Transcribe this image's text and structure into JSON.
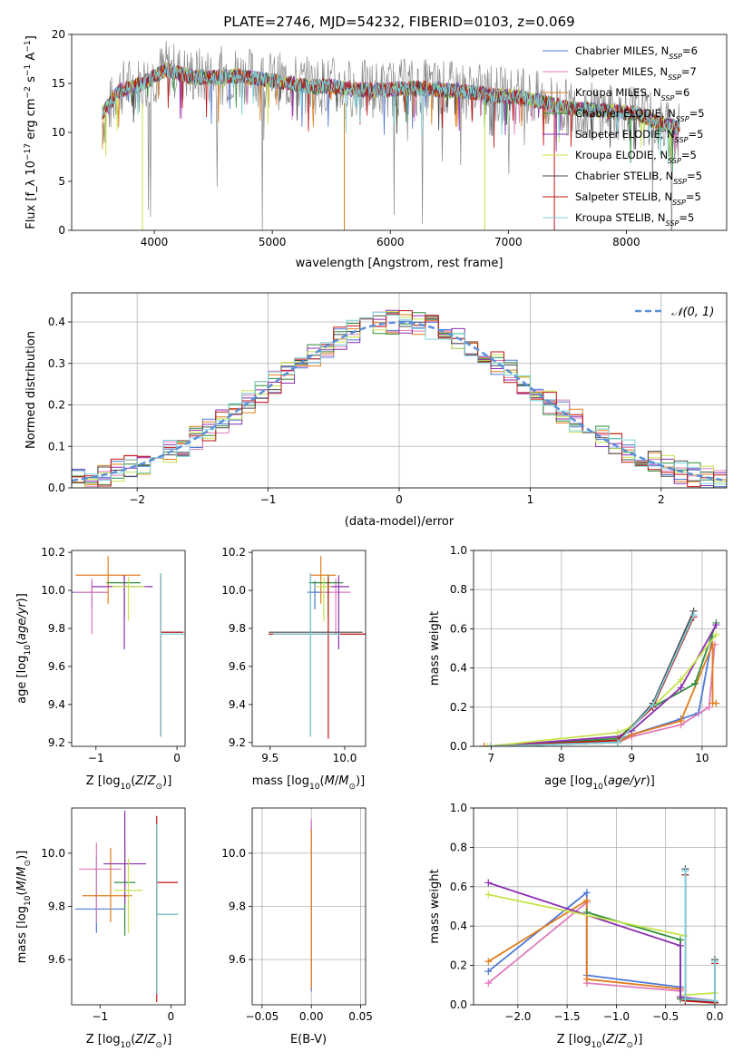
{
  "figure_title": "PLATE=2746, MJD=54232, FIBERID=0103, z=0.069",
  "series_styles": [
    {
      "name": "Chabrier MILES",
      "nssp": "6",
      "color": "#4f78d6"
    },
    {
      "name": "Salpeter MILES",
      "nssp": "7",
      "color": "#e07bbb"
    },
    {
      "name": "Kroupa MILES",
      "nssp": "6",
      "color": "#e07e1d"
    },
    {
      "name": "Chabrier ELODIE",
      "nssp": "5",
      "color": "#2f8e3a"
    },
    {
      "name": "Salpeter ELODIE",
      "nssp": "5",
      "color": "#8c2fb0"
    },
    {
      "name": "Kroupa ELODIE",
      "nssp": "5",
      "color": "#c6e44b"
    },
    {
      "name": "Chabrier STELIB",
      "nssp": "5",
      "color": "#4a4a4a"
    },
    {
      "name": "Salpeter STELIB",
      "nssp": "5",
      "color": "#c01515"
    },
    {
      "name": "Kroupa STELIB",
      "nssp": "5",
      "color": "#7ad2dc"
    }
  ],
  "chart_data": [
    {
      "id": "spectrum",
      "type": "line",
      "title": "PLATE=2746, MJD=54232, FIBERID=0103, z=0.069",
      "xlabel": "wavelength [Angstrom, rest frame]",
      "ylabel": "Flux [f_λ 10^-17 erg cm^-2 s^-1 A^-1]",
      "xlim": [
        3300,
        8850
      ],
      "ylim": [
        0,
        20
      ],
      "xticks": [
        4000,
        5000,
        6000,
        7000,
        8000
      ],
      "yticks": [
        0,
        5,
        10,
        15,
        20
      ],
      "grid": false,
      "legend_position": "top-right",
      "legend_entries": [
        "Chabrier MILES, N_SSP=6",
        "Salpeter MILES, N_SSP=7",
        "Kroupa MILES, N_SSP=6",
        "Chabrier ELODIE, N_SSP=5",
        "Salpeter ELODIE, N_SSP=5",
        "Kroupa ELODIE, N_SSP=5",
        "Chabrier STELIB, N_SSP=5",
        "Salpeter STELIB, N_SSP=5",
        "Kroupa STELIB, N_SSP=5"
      ],
      "data_series": {
        "name": "data",
        "color": "#888888",
        "x": [
          3560,
          3700,
          3900,
          4100,
          4300,
          4500,
          4700,
          4900,
          5100,
          5300,
          5500,
          5700,
          5900,
          6100,
          6300,
          6500,
          6700,
          6900,
          7100,
          7300,
          7500,
          7700,
          7900,
          8100,
          8300,
          8450
        ],
        "y": [
          11,
          14.5,
          15,
          16.5,
          15.8,
          15.8,
          16,
          15.5,
          15.2,
          14.8,
          14.8,
          14.5,
          14.4,
          14.6,
          14.6,
          14.4,
          14.2,
          13.8,
          13.7,
          13.2,
          12.5,
          12.3,
          12,
          12,
          10.5,
          10
        ]
      },
      "model_envelope": {
        "x": [
          3560,
          3700,
          3900,
          4100,
          4300,
          4500,
          4700,
          4900,
          5100,
          5300,
          5500,
          5700,
          5900,
          6100,
          6300,
          6500,
          6700,
          6900,
          7100,
          7300,
          7500,
          7700,
          7900,
          8100,
          8300,
          8450
        ],
        "y": [
          12,
          14.2,
          15,
          16.4,
          15.7,
          15.6,
          15.8,
          15.4,
          15.1,
          14.7,
          14.7,
          14.4,
          14.3,
          14.5,
          14.5,
          14.3,
          14.1,
          13.7,
          13.6,
          13.1,
          12.5,
          12.3,
          12.1,
          11.9,
          10.8,
          10.5
        ]
      }
    },
    {
      "id": "residuals",
      "type": "bar",
      "xlabel": "(data-model)/error",
      "ylabel": "Normed distribution",
      "xlim": [
        -2.5,
        2.5
      ],
      "ylim": [
        0,
        0.47
      ],
      "xticks": [
        -2,
        -1,
        0,
        1,
        2
      ],
      "yticks": [
        0.0,
        0.1,
        0.2,
        0.3,
        0.4
      ],
      "grid": true,
      "legend_position": "top-right",
      "legend_entries": [
        "N(0,1)"
      ],
      "bin_width": 0.1,
      "reference_curve": {
        "name": "N(0,1)",
        "color": "#5b8ed8",
        "mu": 0,
        "sigma": 1
      }
    },
    {
      "id": "age_vs_Z",
      "type": "scatter",
      "xlabel": "Z [log10(Z/Z_sun)]",
      "ylabel": "age [log10(age/yr)]",
      "xlim": [
        -1.3,
        0.1
      ],
      "ylim": [
        9.18,
        10.21
      ],
      "xticks": [
        -1,
        0
      ],
      "yticks": [
        9.2,
        9.4,
        9.6,
        9.8,
        10.0,
        10.2
      ],
      "grid": false,
      "points": [
        {
          "x": -1.05,
          "y": 9.99,
          "xerr": [
            0.25,
            0.2
          ],
          "yerr": [
            0.09,
            0.06
          ]
        },
        {
          "x": -1.05,
          "y": 9.99,
          "xerr": [
            0.22,
            0.2
          ],
          "yerr": [
            0.22,
            0.07
          ]
        },
        {
          "x": -0.85,
          "y": 10.08,
          "xerr": [
            0.4,
            0.4
          ],
          "yerr": [
            0.15,
            0.1
          ]
        },
        {
          "x": -0.65,
          "y": 10.04,
          "xerr": [
            0.22,
            0.2
          ],
          "yerr": [
            0.18,
            0.04
          ]
        },
        {
          "x": -0.65,
          "y": 10.02,
          "xerr": [
            0.4,
            0.35
          ],
          "yerr": [
            0.33,
            0.06
          ]
        },
        {
          "x": -0.6,
          "y": 10.02,
          "xerr": [
            0.2,
            0.2
          ],
          "yerr": [
            0.18,
            0.05
          ]
        },
        {
          "x": -0.2,
          "y": 9.78,
          "xerr": [
            0.0,
            0.28
          ],
          "yerr": [
            0.55,
            0.31
          ]
        },
        {
          "x": -0.2,
          "y": 9.78,
          "xerr": [
            0.0,
            0.28
          ],
          "yerr": [
            0.55,
            0.3
          ]
        },
        {
          "x": -0.2,
          "y": 9.77,
          "xerr": [
            0.0,
            0.3
          ],
          "yerr": [
            0.54,
            0.32
          ]
        }
      ]
    },
    {
      "id": "age_vs_mass",
      "type": "scatter",
      "xlabel": "mass [log10(M/M_sun)]",
      "ylabel": "",
      "xlim": [
        9.38,
        10.14
      ],
      "ylim": [
        9.18,
        10.21
      ],
      "xticks": [
        9.5,
        10.0
      ],
      "yticks": [
        9.2,
        9.4,
        9.6,
        9.8,
        10.0,
        10.2
      ],
      "grid": false,
      "points": [
        {
          "x": 9.8,
          "y": 9.99,
          "xerr": [
            0.05,
            0.1
          ],
          "yerr": [
            0.09,
            0.06
          ]
        },
        {
          "x": 9.94,
          "y": 9.99,
          "xerr": [
            0.1,
            0.1
          ],
          "yerr": [
            0.22,
            0.07
          ]
        },
        {
          "x": 9.84,
          "y": 10.08,
          "xerr": [
            0.07,
            0.1
          ],
          "yerr": [
            0.15,
            0.1
          ]
        },
        {
          "x": 9.89,
          "y": 10.04,
          "xerr": [
            0.13,
            0.1
          ],
          "yerr": [
            0.18,
            0.04
          ]
        },
        {
          "x": 9.96,
          "y": 10.02,
          "xerr": [
            0.06,
            0.07
          ],
          "yerr": [
            0.33,
            0.06
          ]
        },
        {
          "x": 9.86,
          "y": 10.02,
          "xerr": [
            0.06,
            0.05
          ],
          "yerr": [
            0.18,
            0.05
          ]
        },
        {
          "x": 9.77,
          "y": 9.78,
          "xerr": [
            0.28,
            0.35
          ],
          "yerr": [
            0.55,
            0.31
          ]
        },
        {
          "x": 9.89,
          "y": 9.77,
          "xerr": [
            0.4,
            0.25
          ],
          "yerr": [
            0.55,
            0.3
          ]
        },
        {
          "x": 9.77,
          "y": 9.77,
          "xerr": [
            0.25,
            0.2
          ],
          "yerr": [
            0.54,
            0.32
          ]
        }
      ]
    },
    {
      "id": "massweight_vs_age",
      "type": "line",
      "xlabel": "age [log10(age/yr)]",
      "ylabel": "mass weight",
      "xlim": [
        6.75,
        10.35
      ],
      "ylim": [
        0,
        1
      ],
      "xticks": [
        7,
        8,
        9,
        10
      ],
      "yticks": [
        0.0,
        0.2,
        0.4,
        0.6,
        0.8,
        1.0
      ],
      "grid": true,
      "series": [
        {
          "name": "Chabrier MILES",
          "x": [
            6.9,
            8.8,
            9.0,
            9.7,
            9.95,
            10.15
          ],
          "y": [
            0.0,
            0.03,
            0.06,
            0.14,
            0.17,
            0.56
          ]
        },
        {
          "name": "Salpeter MILES",
          "x": [
            6.9,
            8.8,
            9.0,
            9.7,
            10.1,
            10.18
          ],
          "y": [
            0.0,
            0.02,
            0.05,
            0.11,
            0.2,
            0.52
          ]
        },
        {
          "name": "Kroupa MILES",
          "x": [
            6.9,
            8.8,
            9.0,
            9.7,
            10.15,
            10.15,
            10.2
          ],
          "y": [
            0.0,
            0.02,
            0.06,
            0.13,
            0.52,
            0.22,
            0.22
          ]
        },
        {
          "name": "Chabrier ELODIE",
          "x": [
            7.0,
            8.8,
            9.3,
            9.9,
            10.2
          ],
          "y": [
            0.0,
            0.04,
            0.2,
            0.32,
            0.63
          ]
        },
        {
          "name": "Salpeter ELODIE",
          "x": [
            7.0,
            8.8,
            9.0,
            9.7,
            10.2
          ],
          "y": [
            0.0,
            0.05,
            0.08,
            0.3,
            0.62
          ]
        },
        {
          "name": "Kroupa ELODIE",
          "x": [
            6.95,
            8.8,
            9.0,
            9.7,
            10.2
          ],
          "y": [
            0.0,
            0.07,
            0.1,
            0.34,
            0.57
          ]
        },
        {
          "name": "Chabrier STELIB",
          "x": [
            7.0,
            8.8,
            9.3,
            9.88
          ],
          "y": [
            0.0,
            0.02,
            0.22,
            0.69
          ]
        },
        {
          "name": "Salpeter STELIB",
          "x": [
            7.0,
            8.8,
            9.3,
            9.88
          ],
          "y": [
            0.0,
            0.03,
            0.2,
            0.66
          ]
        },
        {
          "name": "Kroupa STELIB",
          "x": [
            7.0,
            8.8,
            9.3,
            9.88
          ],
          "y": [
            0.0,
            0.02,
            0.21,
            0.67
          ]
        }
      ]
    },
    {
      "id": "mass_vs_Z",
      "type": "scatter",
      "xlabel": "Z [log10(Z/Z_sun)]",
      "ylabel": "mass [log10(M/M_sun)]",
      "xlim": [
        -1.4,
        0.2
      ],
      "ylim": [
        9.43,
        10.17
      ],
      "xticks": [
        -1,
        0
      ],
      "yticks": [
        9.6,
        9.8,
        10.0
      ],
      "grid": false,
      "points": [
        {
          "x": -1.05,
          "y": 9.79,
          "xerr": [
            0.3,
            0.4
          ],
          "yerr": [
            0.09,
            0.2
          ]
        },
        {
          "x": -1.05,
          "y": 9.94,
          "xerr": [
            0.25,
            0.35
          ],
          "yerr": [
            0.2,
            0.1
          ]
        },
        {
          "x": -0.85,
          "y": 9.84,
          "xerr": [
            0.4,
            0.3
          ],
          "yerr": [
            0.1,
            0.18
          ]
        },
        {
          "x": -0.65,
          "y": 9.89,
          "xerr": [
            0.15,
            0.15
          ],
          "yerr": [
            0.2,
            0.15
          ]
        },
        {
          "x": -0.65,
          "y": 9.96,
          "xerr": [
            0.3,
            0.3
          ],
          "yerr": [
            0.15,
            0.2
          ]
        },
        {
          "x": -0.6,
          "y": 9.86,
          "xerr": [
            0.2,
            0.2
          ],
          "yerr": [
            0.16,
            0.12
          ]
        },
        {
          "x": -0.2,
          "y": 9.77,
          "xerr": [
            0.0,
            0.3
          ],
          "yerr": [
            0.3,
            0.33
          ]
        },
        {
          "x": -0.2,
          "y": 9.89,
          "xerr": [
            0.0,
            0.3
          ],
          "yerr": [
            0.45,
            0.25
          ]
        },
        {
          "x": -0.2,
          "y": 9.77,
          "xerr": [
            0.0,
            0.3
          ],
          "yerr": [
            0.3,
            0.34
          ]
        }
      ]
    },
    {
      "id": "mass_vs_EBV",
      "type": "scatter",
      "xlabel": "E(B-V)",
      "ylabel": "",
      "xlim": [
        -0.06,
        0.055
      ],
      "ylim": [
        9.43,
        10.17
      ],
      "xticks": [
        -0.05,
        0.0,
        0.05
      ],
      "yticks": [
        9.6,
        9.8,
        10.0
      ],
      "grid": true,
      "points": [
        {
          "x": 0.0,
          "y": 9.8,
          "xerr": [
            0,
            0
          ],
          "yerr": [
            0.32,
            0.32
          ]
        },
        {
          "x": 0.0,
          "y": 9.8,
          "xerr": [
            0,
            0
          ],
          "yerr": [
            0.31,
            0.33
          ]
        },
        {
          "x": 0.0,
          "y": 9.79,
          "xerr": [
            0,
            0
          ],
          "yerr": [
            0.3,
            0.3
          ]
        }
      ]
    },
    {
      "id": "massweight_vs_Z",
      "type": "line",
      "xlabel": "Z [log10(Z/Z_sun)]",
      "ylabel": "mass weight",
      "xlim": [
        -2.45,
        0.12
      ],
      "ylim": [
        0,
        1
      ],
      "xticks": [
        -2.0,
        -1.5,
        -1.0,
        -0.5,
        0.0
      ],
      "yticks": [
        0.0,
        0.2,
        0.4,
        0.6,
        0.8,
        1.0
      ],
      "grid": true,
      "series": [
        {
          "name": "Chabrier MILES",
          "x": [
            -2.3,
            -1.3,
            -1.3,
            -0.35,
            -0.35,
            0.0
          ],
          "y": [
            0.17,
            0.57,
            0.15,
            0.09,
            0.04,
            0.02
          ]
        },
        {
          "name": "Salpeter MILES",
          "x": [
            -2.3,
            -1.3,
            -1.3,
            -0.35,
            -0.35,
            0.0
          ],
          "y": [
            0.11,
            0.52,
            0.11,
            0.07,
            0.04,
            0.02
          ]
        },
        {
          "name": "Kroupa MILES",
          "x": [
            -2.3,
            -1.3,
            -1.3,
            -0.35,
            -0.35,
            0.0
          ],
          "y": [
            0.22,
            0.53,
            0.13,
            0.08,
            0.03,
            0.01
          ]
        },
        {
          "name": "Chabrier ELODIE",
          "x": [
            -1.3,
            -0.35,
            -0.35,
            0.0
          ],
          "y": [
            0.47,
            0.33,
            0.03,
            0.01
          ]
        },
        {
          "name": "Salpeter ELODIE",
          "x": [
            -2.3,
            -0.35,
            -0.35,
            0.0
          ],
          "y": [
            0.62,
            0.3,
            0.04,
            0.01
          ]
        },
        {
          "name": "Kroupa ELODIE",
          "x": [
            -2.3,
            -0.3,
            -0.3,
            0.0
          ],
          "y": [
            0.56,
            0.35,
            0.05,
            0.06
          ]
        },
        {
          "name": "Chabrier STELIB",
          "x": [
            -0.3,
            -0.3,
            0.0,
            0.0
          ],
          "y": [
            0.69,
            0.03,
            0.02,
            0.23
          ]
        },
        {
          "name": "Salpeter STELIB",
          "x": [
            -0.3,
            -0.3,
            0.0,
            0.0
          ],
          "y": [
            0.66,
            0.02,
            0.01,
            0.21
          ]
        },
        {
          "name": "Kroupa STELIB",
          "x": [
            -0.3,
            -0.3,
            0.0,
            0.0
          ],
          "y": [
            0.68,
            0.03,
            0.02,
            0.22
          ]
        }
      ]
    }
  ]
}
